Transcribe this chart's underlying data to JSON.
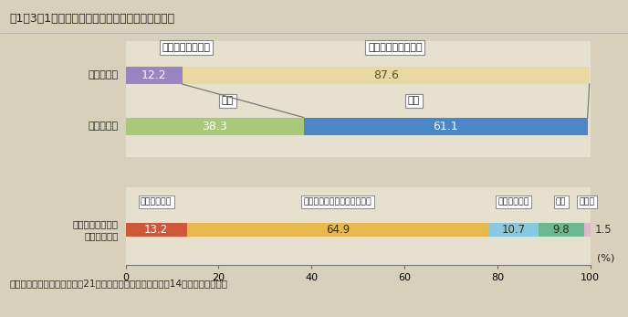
{
  "title": "第1－3－1図　新たに職に就いた者とその就業状況",
  "bg_color": "#d8d0bb",
  "chart_bg": "#e6e0ce",
  "title_bg": "#f0ebe0",
  "row1_label": "第１回調査",
  "row2_label": "第２回調査",
  "row3_label": "新たに職に就いた\n者の就業状況",
  "row1": [
    {
      "value": 12.2,
      "color": "#9b84c2",
      "label": "12.2"
    },
    {
      "value": 87.6,
      "color": "#e8d9a0",
      "label": "87.6"
    }
  ],
  "row2": [
    {
      "value": 38.3,
      "color": "#a8c87a",
      "label": "38.3"
    },
    {
      "value": 61.1,
      "color": "#4a86c8",
      "label": "61.1"
    }
  ],
  "row3": [
    {
      "value": 13.2,
      "color": "#d05838",
      "label": "13.2"
    },
    {
      "value": 64.9,
      "color": "#e8b84a",
      "label": "64.9"
    },
    {
      "value": 10.7,
      "color": "#88c8e0",
      "label": "10.7"
    },
    {
      "value": 9.8,
      "color": "#68b890",
      "label": "9.8"
    },
    {
      "value": 1.5,
      "color": "#e0b8c8",
      "label": "1.5"
    }
  ],
  "legend_top_left_label": "仕事を探している",
  "legend_top_right_label": "仕事を探していない",
  "legend_mid_left": "有職",
  "legend_mid_right": "無職",
  "legend_bot": [
    {
      "label": "勤め（常勤）"
    },
    {
      "label": "勤め（パート・アルバイト）"
    },
    {
      "label": "自営業・家業"
    },
    {
      "label": "内職"
    },
    {
      "label": "その他"
    }
  ],
  "note": "（備考）厚生労働省「第２回21世紀出生児縦断調査」（平成14年度）より作成。",
  "xlim": [
    0,
    100
  ],
  "xticks": [
    0,
    20,
    40,
    60,
    80,
    100
  ],
  "xlabel": "(%)"
}
